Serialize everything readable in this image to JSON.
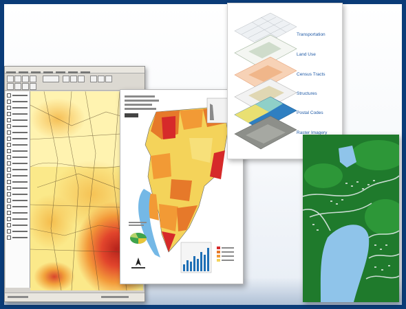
{
  "layers_panel": {
    "layers": [
      {
        "label": "Transportation"
      },
      {
        "label": "Land Use"
      },
      {
        "label": "Census Tracts"
      },
      {
        "label": "Structures"
      },
      {
        "label": "Postal Codes"
      },
      {
        "label": "Raster Imagery"
      }
    ]
  },
  "colors": {
    "frame": "#0b3c78",
    "layer_label": "#1f5aa6",
    "heat_low": "#fff2a8",
    "heat_mid": "#f6b43c",
    "heat_high": "#d9362a",
    "terrain": "#1e6f2a",
    "water": "#8fc4ea"
  },
  "icons": [
    "toolbar-button-icon",
    "layer-checkbox-icon",
    "north-arrow-icon",
    "pie-chart-icon",
    "bar-chart-icon"
  ]
}
